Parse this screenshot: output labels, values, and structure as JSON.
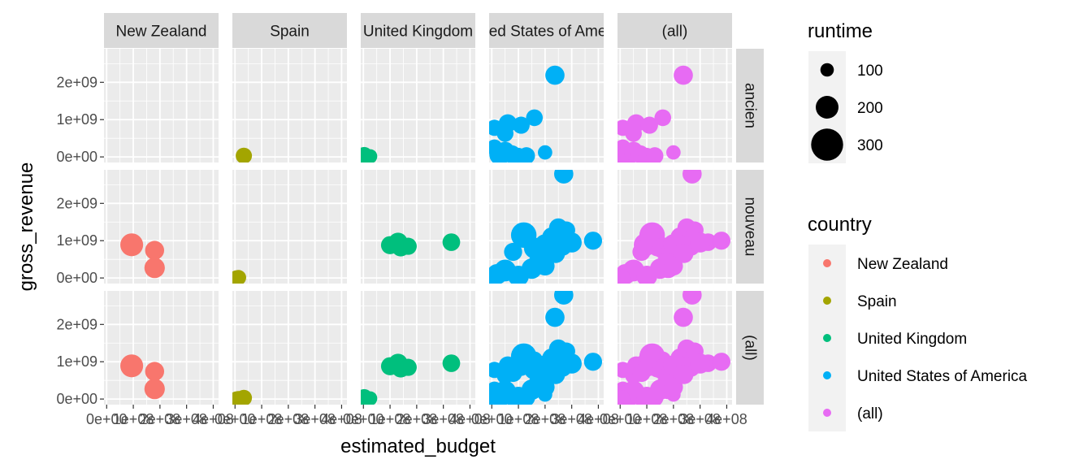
{
  "chart_data": {
    "type": "scatter",
    "xlabel": "estimated_budget",
    "ylabel": "gross_revenue",
    "xlim": [
      -10000000,
      420000000
    ],
    "ylim": [
      -150000000,
      2900000000
    ],
    "x_ticks": [
      0,
      100000000,
      200000000,
      300000000,
      400000000
    ],
    "x_tick_labels": [
      "0e+00",
      "1e+08",
      "2e+08",
      "3e+08",
      "4e+08"
    ],
    "y_ticks": [
      0,
      1000000000,
      2000000000
    ],
    "y_tick_labels": [
      "0e+00",
      "1e+09",
      "2e+09"
    ],
    "grid": true,
    "col_facets": [
      "New Zealand",
      "Spain",
      "United Kingdom",
      "United States of America",
      "(all)"
    ],
    "row_facets": [
      "ancien",
      "nouveau",
      "(all)"
    ],
    "legend_position": "right",
    "legends": {
      "size": {
        "title": "runtime",
        "entries": [
          {
            "label": "100",
            "value": 100
          },
          {
            "label": "200",
            "value": 200
          },
          {
            "label": "300",
            "value": 300
          }
        ]
      },
      "color": {
        "title": "country",
        "entries": [
          {
            "label": "New Zealand",
            "color": "#F8766D"
          },
          {
            "label": "Spain",
            "color": "#A3A500"
          },
          {
            "label": "United Kingdom",
            "color": "#00BF7D"
          },
          {
            "label": "United States of America",
            "color": "#00B0F6"
          },
          {
            "label": "(all)",
            "color": "#E76BF3"
          }
        ]
      }
    },
    "series": [
      {
        "name": "New Zealand",
        "color": "#F8766D",
        "points": [
          {
            "era": "nouveau",
            "x": 94000000,
            "y": 890000000,
            "runtime": 201
          },
          {
            "era": "nouveau",
            "x": 180000000,
            "y": 740000000,
            "runtime": 160
          },
          {
            "era": "nouveau",
            "x": 180000000,
            "y": 270000000,
            "runtime": 175
          }
        ]
      },
      {
        "name": "Spain",
        "color": "#A3A500",
        "points": [
          {
            "era": "ancien",
            "x": 33000000,
            "y": 30000000,
            "runtime": 130
          },
          {
            "era": "nouveau",
            "x": 13000000,
            "y": 10000000,
            "runtime": 120
          },
          {
            "era": "nouveau",
            "x": 5000000,
            "y": 5000000,
            "runtime": 115
          }
        ]
      },
      {
        "name": "United Kingdom",
        "color": "#00BF7D",
        "points": [
          {
            "era": "ancien",
            "x": 3000000,
            "y": 50000000,
            "runtime": 130
          },
          {
            "era": "ancien",
            "x": 25000000,
            "y": 15000000,
            "runtime": 110
          },
          {
            "era": "nouveau",
            "x": 100000000,
            "y": 880000000,
            "runtime": 150
          },
          {
            "era": "nouveau",
            "x": 130000000,
            "y": 960000000,
            "runtime": 160
          },
          {
            "era": "nouveau",
            "x": 140000000,
            "y": 820000000,
            "runtime": 150
          },
          {
            "era": "nouveau",
            "x": 168000000,
            "y": 850000000,
            "runtime": 140
          },
          {
            "era": "nouveau",
            "x": 330000000,
            "y": 960000000,
            "runtime": 145
          }
        ]
      },
      {
        "name": "United States of America",
        "color": "#00B0F6",
        "points": [
          {
            "era": "ancien",
            "x": 237000000,
            "y": 2190000000,
            "runtime": 162
          },
          {
            "era": "ancien",
            "x": 10000000,
            "y": 780000000,
            "runtime": 130
          },
          {
            "era": "ancien",
            "x": 50000000,
            "y": 630000000,
            "runtime": 135
          },
          {
            "era": "ancien",
            "x": 60000000,
            "y": 900000000,
            "runtime": 150
          },
          {
            "era": "ancien",
            "x": 110000000,
            "y": 850000000,
            "runtime": 140
          },
          {
            "era": "ancien",
            "x": 160000000,
            "y": 1050000000,
            "runtime": 135
          },
          {
            "era": "ancien",
            "x": 10000000,
            "y": 250000000,
            "runtime": 130
          },
          {
            "era": "ancien",
            "x": 30000000,
            "y": 60000000,
            "runtime": 180
          },
          {
            "era": "ancien",
            "x": 50000000,
            "y": 150000000,
            "runtime": 160
          },
          {
            "era": "ancien",
            "x": 75000000,
            "y": 70000000,
            "runtime": 150
          },
          {
            "era": "ancien",
            "x": 100000000,
            "y": 20000000,
            "runtime": 135
          },
          {
            "era": "ancien",
            "x": 130000000,
            "y": 30000000,
            "runtime": 140
          },
          {
            "era": "ancien",
            "x": 200000000,
            "y": 120000000,
            "runtime": 110
          },
          {
            "era": "nouveau",
            "x": 270000000,
            "y": 2790000000,
            "runtime": 162
          },
          {
            "era": "nouveau",
            "x": 120000000,
            "y": 1150000000,
            "runtime": 230
          },
          {
            "era": "nouveau",
            "x": 160000000,
            "y": 800000000,
            "runtime": 180
          },
          {
            "era": "nouveau",
            "x": 180000000,
            "y": 600000000,
            "runtime": 165
          },
          {
            "era": "nouveau",
            "x": 200000000,
            "y": 900000000,
            "runtime": 175
          },
          {
            "era": "nouveau",
            "x": 225000000,
            "y": 1100000000,
            "runtime": 160
          },
          {
            "era": "nouveau",
            "x": 250000000,
            "y": 1350000000,
            "runtime": 155
          },
          {
            "era": "nouveau",
            "x": 265000000,
            "y": 850000000,
            "runtime": 160
          },
          {
            "era": "nouveau",
            "x": 280000000,
            "y": 1280000000,
            "runtime": 145
          },
          {
            "era": "nouveau",
            "x": 300000000,
            "y": 950000000,
            "runtime": 170
          },
          {
            "era": "nouveau",
            "x": 380000000,
            "y": 1000000000,
            "runtime": 150
          },
          {
            "era": "nouveau",
            "x": 80000000,
            "y": 700000000,
            "runtime": 150
          },
          {
            "era": "nouveau",
            "x": 20000000,
            "y": 100000000,
            "runtime": 175
          },
          {
            "era": "nouveau",
            "x": 50000000,
            "y": 200000000,
            "runtime": 190
          },
          {
            "era": "nouveau",
            "x": 100000000,
            "y": 50000000,
            "runtime": 180
          },
          {
            "era": "nouveau",
            "x": 150000000,
            "y": 250000000,
            "runtime": 175
          },
          {
            "era": "nouveau",
            "x": 175000000,
            "y": 420000000,
            "runtime": 165
          },
          {
            "era": "nouveau",
            "x": 200000000,
            "y": 320000000,
            "runtime": 160
          },
          {
            "era": "nouveau",
            "x": 240000000,
            "y": 650000000,
            "runtime": 155
          },
          {
            "era": "nouveau",
            "x": 5000000,
            "y": 10000000,
            "runtime": 140
          }
        ]
      }
    ]
  }
}
